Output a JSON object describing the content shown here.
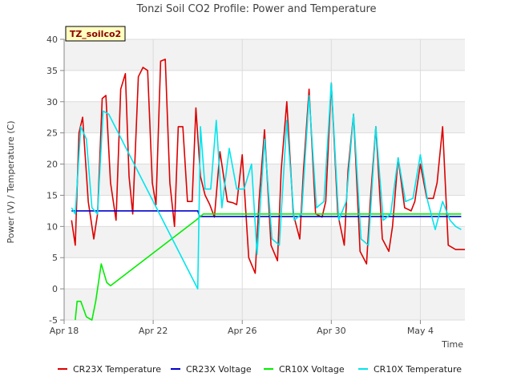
{
  "chart_data": {
    "type": "line",
    "title": "Tonzi Soil CO2 Profile: Power and Temperature",
    "xlabel": "Time",
    "ylabel": "Power (V) / Temperature (C)",
    "badge": "TZ_soilco2",
    "ylim": [
      -5,
      40
    ],
    "yticks": [
      -5,
      0,
      5,
      10,
      15,
      20,
      25,
      30,
      35,
      40
    ],
    "xlim": [
      "Apr 18",
      "May 6"
    ],
    "xticks": [
      "Apr 18",
      "Apr 22",
      "Apr 26",
      "Apr 30",
      "May 4"
    ],
    "grid": true,
    "legend_position": "bottom",
    "series": [
      {
        "name": "CR23X Temperature",
        "color": "#dd0000",
        "x": [
          "Apr 18 08:00",
          "Apr 18 09:00",
          "Apr 18 12:00",
          "Apr 18 16:00",
          "Apr 18 20:00",
          "Apr 19 02:00",
          "Apr 19 08:00",
          "Apr 19 12:00",
          "Apr 19 17:00",
          "Apr 19 21:00",
          "Apr 20 02:00",
          "Apr 20 08:00",
          "Apr 20 13:00",
          "Apr 20 18:00",
          "Apr 20 22:00",
          "Apr 21 02:00",
          "Apr 21 08:00",
          "Apr 21 13:00",
          "Apr 21 18:00",
          "Apr 21 23:00",
          "Apr 22 03:00",
          "Apr 22 08:00",
          "Apr 22 13:00",
          "Apr 22 18:00",
          "Apr 22 23:00",
          "Apr 23 03:00",
          "Apr 23 08:00",
          "Apr 23 13:00",
          "Apr 23 18:00",
          "Apr 23 22:00",
          "Apr 24 03:00",
          "Apr 24 08:00",
          "Apr 24 13:00",
          "Apr 24 18:00",
          "Apr 25 00:00",
          "Apr 25 08:00",
          "Apr 25 14:00",
          "Apr 25 18:00",
          "Apr 26 00:00",
          "Apr 26 07:00",
          "Apr 26 14:00",
          "Apr 26 18:00",
          "Apr 27 00:00",
          "Apr 27 07:00",
          "Apr 27 14:00",
          "Apr 27 18:00",
          "Apr 28 00:00",
          "Apr 28 07:00",
          "Apr 28 14:00",
          "Apr 28 18:00",
          "Apr 29 00:00",
          "Apr 29 07:00",
          "Apr 29 14:00",
          "Apr 29 18:00",
          "Apr 30 00:00",
          "Apr 30 07:00",
          "Apr 30 14:00",
          "Apr 30 18:00",
          "May 1 00:00",
          "May 1 07:00",
          "May 1 14:00",
          "May 1 18:00",
          "May 2 00:00",
          "May 2 07:00",
          "May 2 14:00",
          "May 2 18:00",
          "May 3 00:00",
          "May 3 07:00",
          "May 3 14:00",
          "May 3 18:00",
          "May 4 00:00",
          "May 4 07:00",
          "May 4 14:00",
          "May 4 18:00",
          "May 5 00:00",
          "May 5 06:00",
          "May 5 14:00",
          "May 5 18:00",
          "May 6 00:00"
        ],
        "y": [
          11,
          10,
          7,
          25,
          27.5,
          14,
          8,
          12,
          30.5,
          31,
          17,
          11,
          32,
          34.5,
          18,
          12,
          34,
          35.5,
          35,
          17,
          13.5,
          36.5,
          36.8,
          17,
          10,
          26,
          26,
          14,
          14,
          29,
          18,
          15,
          13.5,
          11.5,
          22,
          14,
          13.8,
          13.5,
          21.5,
          5,
          2.5,
          14,
          25.5,
          7,
          4.5,
          19,
          30,
          12,
          8,
          19,
          32,
          12,
          11.5,
          14,
          33,
          12,
          7,
          19,
          28,
          6,
          4,
          14,
          26,
          8,
          6,
          10,
          21,
          13,
          12.5,
          14,
          20,
          14.5,
          14.5,
          17,
          26,
          7,
          6.3,
          6.3,
          6.3
        ]
      },
      {
        "name": "CR23X Voltage",
        "color": "#0000cc",
        "x": [
          "Apr 18 08:00",
          "Apr 24 00:00",
          "Apr 24 02:00",
          "May 5 20:00"
        ],
        "y": [
          12.5,
          12.5,
          11.6,
          11.6
        ]
      },
      {
        "name": "CR10X Voltage",
        "color": "#00ee00",
        "x": [
          "Apr 18 12:00",
          "Apr 18 14:00",
          "Apr 18 18:00",
          "Apr 19 00:00",
          "Apr 19 06:00",
          "Apr 19 10:00",
          "Apr 19 16:00",
          "Apr 19 22:00",
          "Apr 20 02:00",
          "Apr 23 22:00",
          "Apr 24 06:00",
          "May 5 20:00"
        ],
        "y": [
          -5,
          -2,
          -2,
          -4.5,
          -5,
          -2,
          4,
          1,
          0.5,
          11,
          12,
          12
        ]
      },
      {
        "name": "CR10X Temperature",
        "color": "#00e5ee",
        "x": [
          "Apr 18 08:00",
          "Apr 18 12:00",
          "Apr 18 18:00",
          "Apr 19 00:00",
          "Apr 19 06:00",
          "Apr 19 12:00",
          "Apr 19 18:00",
          "Apr 20 00:00",
          "Apr 24 00:00",
          "Apr 24 03:00",
          "Apr 24 08:00",
          "Apr 24 14:00",
          "Apr 24 20:00",
          "Apr 25 02:00",
          "Apr 25 10:00",
          "Apr 25 18:00",
          "Apr 26 02:00",
          "Apr 26 10:00",
          "Apr 26 16:00",
          "Apr 27 00:00",
          "Apr 27 08:00",
          "Apr 27 16:00",
          "Apr 28 00:00",
          "Apr 28 08:00",
          "Apr 28 16:00",
          "Apr 29 00:00",
          "Apr 29 08:00",
          "Apr 29 16:00",
          "Apr 30 00:00",
          "Apr 30 08:00",
          "Apr 30 16:00",
          "May 1 00:00",
          "May 1 08:00",
          "May 1 16:00",
          "May 2 00:00",
          "May 2 08:00",
          "May 2 16:00",
          "May 3 00:00",
          "May 3 08:00",
          "May 3 16:00",
          "May 4 00:00",
          "May 4 08:00",
          "May 4 16:00",
          "May 5 00:00",
          "May 5 08:00",
          "May 5 14:00",
          "May 5 20:00"
        ],
        "y": [
          13,
          12,
          26,
          24,
          13,
          12,
          28.5,
          28,
          0,
          26,
          16,
          16,
          27,
          13,
          22.5,
          16,
          16,
          20,
          5.5,
          24,
          8,
          7,
          27,
          11,
          12,
          31,
          13,
          14,
          33,
          11,
          14,
          28,
          8,
          7,
          26,
          11,
          12,
          21,
          14,
          14.5,
          21.5,
          14,
          9.5,
          14,
          11,
          10,
          9.5
        ]
      }
    ]
  }
}
